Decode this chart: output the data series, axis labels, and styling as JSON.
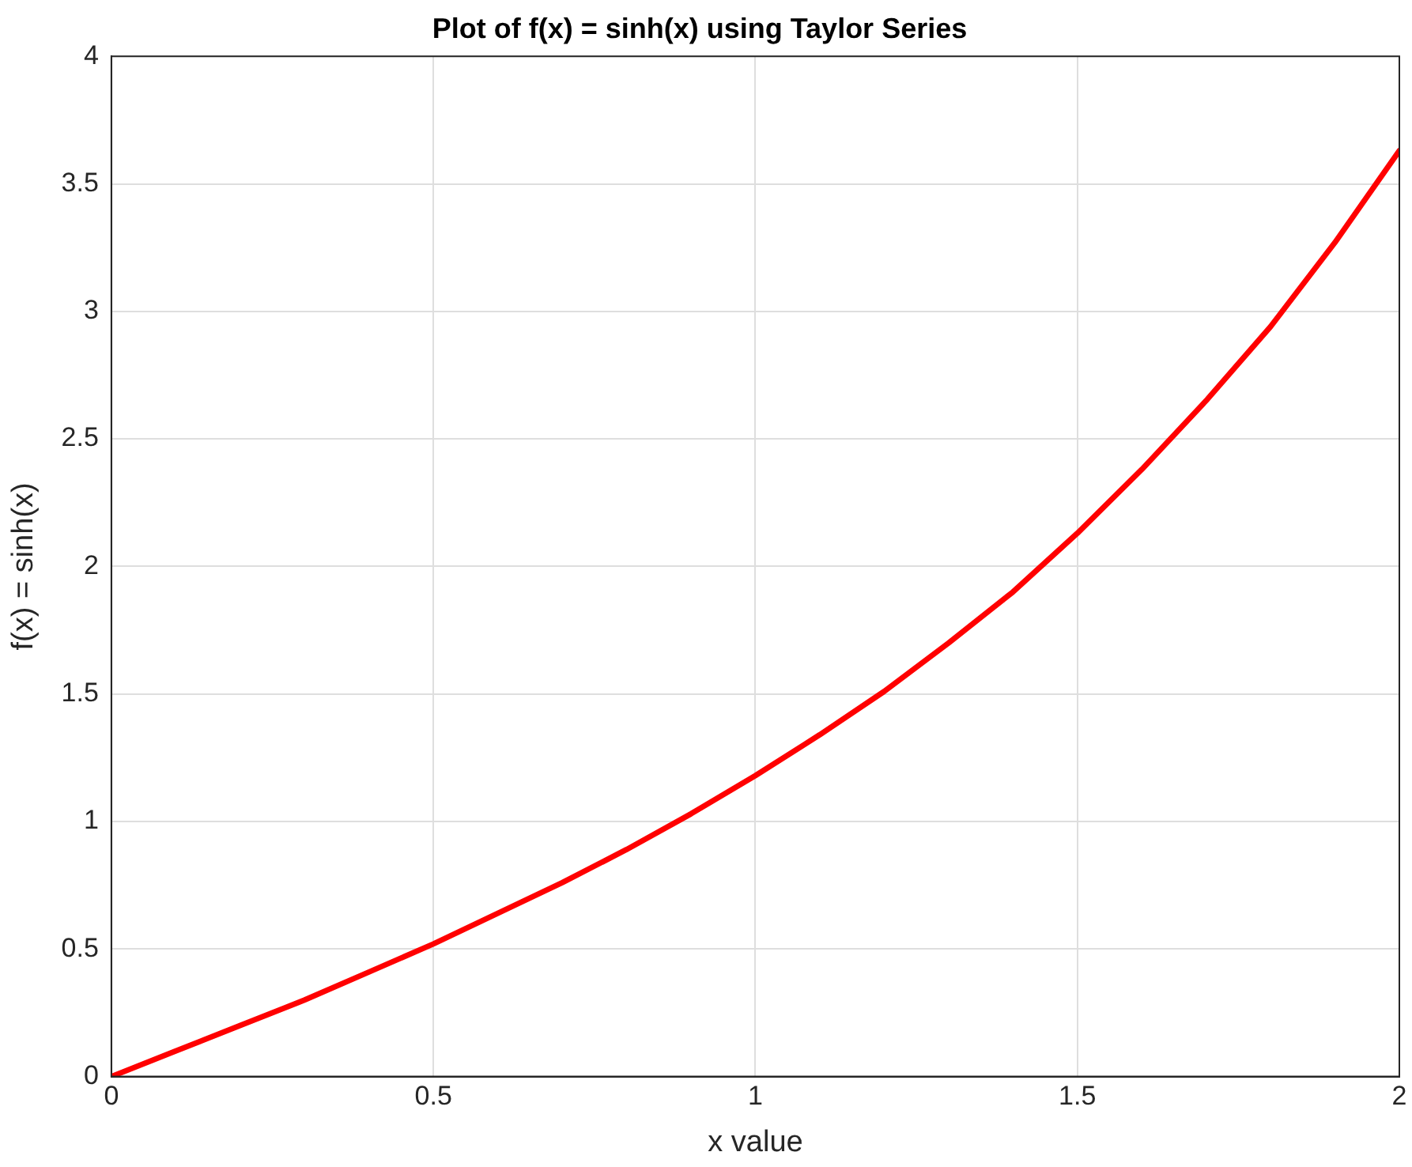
{
  "chart_data": {
    "type": "line",
    "title": "Plot of f(x) = sinh(x) using Taylor Series",
    "xlabel": "x value",
    "ylabel": "f(x) = sinh(x)",
    "x": [
      0,
      0.1,
      0.2,
      0.3,
      0.4,
      0.5,
      0.6,
      0.7,
      0.8,
      0.9,
      1,
      1.1,
      1.2,
      1.3,
      1.4,
      1.5,
      1.6,
      1.7,
      1.8,
      1.9,
      2
    ],
    "series": [
      {
        "color": "#ff0000",
        "values": [
          0,
          0.1,
          0.2,
          0.3,
          0.41,
          0.52,
          0.64,
          0.76,
          0.89,
          1.03,
          1.18,
          1.34,
          1.51,
          1.7,
          1.9,
          2.13,
          2.38,
          2.65,
          2.94,
          3.27,
          3.63
        ]
      }
    ],
    "xlim": [
      0,
      2
    ],
    "xticks": [
      0,
      0.5,
      1,
      1.5,
      2
    ],
    "ylim": [
      0,
      4
    ],
    "yticks": [
      0,
      0.5,
      1,
      1.5,
      2,
      2.5,
      3,
      3.5,
      4
    ],
    "grid": true,
    "legend": false,
    "marker": "none",
    "line_style": "solid"
  }
}
